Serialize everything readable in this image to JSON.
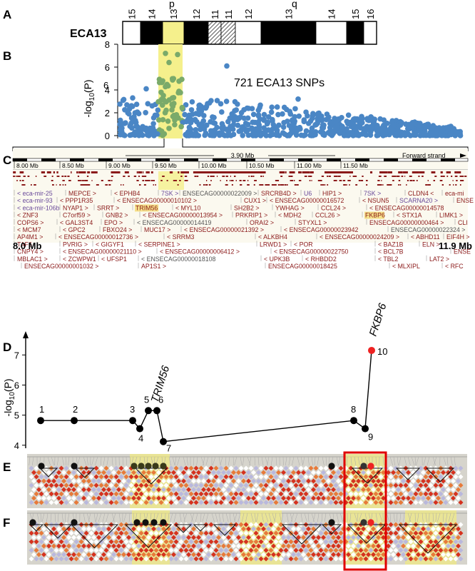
{
  "panels": {
    "a": "A",
    "b": "B",
    "c": "C",
    "d": "D",
    "e": "E",
    "f": "F"
  },
  "colors": {
    "snp_blue": "#4a86c5",
    "snp_green": "#7aaa6a",
    "highlight_yellow": "#f5f08c",
    "gene_red": "#8b1a1a",
    "gene_purple": "#6a4a9a",
    "ld_red": "#d5321f",
    "ld_orange": "#e77a3a",
    "ld_lavender": "#b9b8dd",
    "ld_bg": "#d6d4cc",
    "focus_box": "#e00000",
    "top_snp": "#ee2222"
  },
  "ideogram": {
    "chrom_label": "ECA13",
    "arm_p": "p",
    "arm_q": "q",
    "bands": [
      "15",
      "14",
      "13",
      "12",
      "11",
      "11",
      "12",
      "13",
      "14",
      "15",
      "16"
    ]
  },
  "manhattan": {
    "ylabel": "-log10(P)",
    "ylabel_main": "-log",
    "ylabel_sub": "10",
    "ylabel_tail": "(P)",
    "yticks": [
      "0",
      "2",
      "4",
      "6",
      "8"
    ],
    "ylim": [
      0,
      8
    ],
    "annotation": "721 ECA13 SNPs",
    "stray_label": "6"
  },
  "region": {
    "span_label": "3.90 Mb",
    "strand_label": "Forward strand",
    "ticks": [
      "8.00 Mb",
      "8.50 Mb",
      "9.00 Mb",
      "9.50 Mb",
      "10.00 Mb",
      "10.50 Mb",
      "11.00 Mb",
      "11.50 Mb"
    ],
    "start_label": "8.0 Mb",
    "end_label": "11.9 Mb",
    "gene_rows": [
      [
        "< eca-mir-25",
        "MEPCE >",
        "< EPHB4",
        "7SK >",
        "ENSECAG00000022009 >",
        "SRCRB4D >",
        "U6",
        "HIP1 >",
        "7SK >",
        "CLDN4 <",
        "eca-mi"
      ],
      [
        "< eca-mir-93",
        "< PPP1R35",
        "< ENSECAG00000010102 >",
        "CUX1 >",
        "< ENSECAG00000016572",
        "< NSUN5",
        "SCARNA20 >",
        "ENSE"
      ],
      [
        "< eca-mir-106b",
        "NYAP1 >",
        "SRRT >",
        "TRIM56",
        "< MYL10",
        "SH2B2 >",
        "YWHAG >",
        "CCL24 >",
        "< ENSECAG00000014578"
      ],
      [
        "< ZNF3",
        "C7orf59 >",
        "GNB2 >",
        "< ENSECAG00000013954 >",
        "PRKRIP1 >",
        "< MDH2",
        "CCL26 >",
        "FKBP6",
        "< STX1A",
        "LIMK1 >"
      ],
      [
        "COPS6 >",
        "< GAL3ST4",
        "EPO >",
        "< ENSECAG00000014419",
        "ORAI2 >",
        "STYXL1 >",
        "ENSECAG00000000464 >",
        "CLI"
      ],
      [
        "< MCM7",
        "< GPC2",
        "FBXO24 >",
        "MUC17 >",
        "< ENSECAG00000021392 >",
        "< ENSECAG00000023942",
        "ENSECAG00000022324 >"
      ],
      [
        "AP4M1 >",
        "< ENSECAG00000012736 >",
        "< SRRM3",
        "< ALKBH4",
        "< ENSECAG00000024209 >",
        "< ABHD11",
        "EIF4H >"
      ],
      [
        "TAF6",
        "PVRIG >",
        "< GIGYF1",
        "< SERPINE1 >",
        "LRWD1 >",
        "< POR",
        "< BAZ1B",
        "ELN >"
      ],
      [
        "CNPY4 >",
        "< ENSECAG00000021110 >",
        "< ENSECAG00000006412 >",
        "< ENSECAG00000022750",
        "< BCL7B",
        "ENSE"
      ],
      [
        "MBLAC1 >",
        "< ZCWPW1",
        "< UFSP1",
        "< ENSECAG00000018108",
        "< UPK3B",
        "< RHBDD2",
        "< TBL2",
        "LAT2 >"
      ],
      [
        "ENSECAG00000001032 >",
        "AP1S1 >",
        "ENSECAG00000018425",
        "< MLXIPL",
        "< RFC"
      ]
    ]
  },
  "conditional": {
    "ylabel_main": "-log",
    "ylabel_sub": "10",
    "ylabel_tail": "(P)",
    "yticks": [
      "4",
      "5",
      "6",
      "7"
    ],
    "ylim": [
      3.9,
      7.6
    ],
    "gene_label_1": "TRIM56",
    "gene_label_2": "FKBP6",
    "points": [
      {
        "n": "1",
        "y": 4.82
      },
      {
        "n": "2",
        "y": 4.82
      },
      {
        "n": "3",
        "y": 4.82
      },
      {
        "n": "4",
        "y": 4.55
      },
      {
        "n": "5",
        "y": 5.15
      },
      {
        "n": "6",
        "y": 5.15
      },
      {
        "n": "7",
        "y": 4.12
      },
      {
        "n": "8",
        "y": 4.82
      },
      {
        "n": "9",
        "y": 4.55
      },
      {
        "n": "10",
        "y": 7.15
      }
    ]
  }
}
